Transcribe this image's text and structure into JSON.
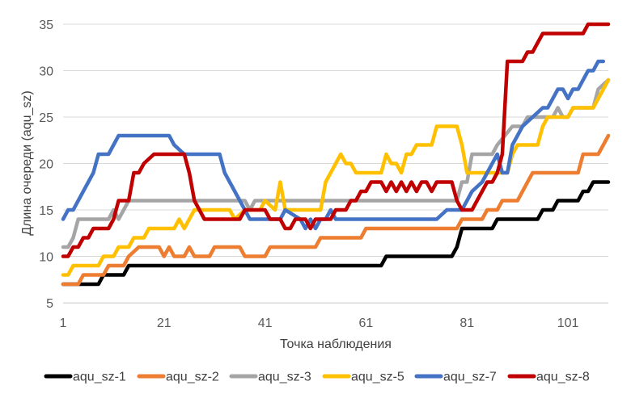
{
  "chart_data": {
    "type": "line",
    "title": "",
    "xlabel": "Точка наблюдения",
    "ylabel": "Длина очереди (aqu_sz)",
    "ylim": [
      5,
      35
    ],
    "xlim": [
      1,
      109
    ],
    "yticks": [
      "5",
      "10",
      "15",
      "20",
      "25",
      "30",
      "35"
    ],
    "xticks": [
      "1",
      "21",
      "41",
      "61",
      "81",
      "101"
    ],
    "grid": "horizontal",
    "legend": "bottom",
    "series": [
      {
        "name": "aqu_sz-1",
        "color": "#000000",
        "points": [
          [
            1,
            7
          ],
          [
            8,
            7
          ],
          [
            9,
            8
          ],
          [
            13,
            8
          ],
          [
            14,
            9
          ],
          [
            17,
            9
          ],
          [
            18,
            9
          ],
          [
            41,
            9
          ],
          [
            64,
            9
          ],
          [
            65,
            10
          ],
          [
            78,
            10
          ],
          [
            79,
            11
          ],
          [
            80,
            13
          ],
          [
            86,
            13
          ],
          [
            87,
            14
          ],
          [
            95,
            14
          ],
          [
            96,
            15
          ],
          [
            98,
            15
          ],
          [
            99,
            16
          ],
          [
            103,
            16
          ],
          [
            104,
            17
          ],
          [
            105,
            17
          ],
          [
            106,
            18
          ],
          [
            109,
            18
          ]
        ]
      },
      {
        "name": "aqu_sz-2",
        "color": "#ED7D31",
        "points": [
          [
            1,
            7
          ],
          [
            4,
            7
          ],
          [
            5,
            8
          ],
          [
            9,
            8
          ],
          [
            10,
            9
          ],
          [
            13,
            9
          ],
          [
            14,
            10
          ],
          [
            16,
            11
          ],
          [
            20,
            11
          ],
          [
            21,
            10
          ],
          [
            22,
            11
          ],
          [
            23,
            10
          ],
          [
            25,
            10
          ],
          [
            26,
            11
          ],
          [
            27,
            10
          ],
          [
            30,
            10
          ],
          [
            31,
            11
          ],
          [
            36,
            11
          ],
          [
            37,
            10
          ],
          [
            41,
            10
          ],
          [
            42,
            11
          ],
          [
            51,
            11
          ],
          [
            52,
            12
          ],
          [
            60,
            12
          ],
          [
            61,
            13
          ],
          [
            79,
            13
          ],
          [
            80,
            14
          ],
          [
            84,
            14
          ],
          [
            85,
            15
          ],
          [
            87,
            15
          ],
          [
            88,
            16
          ],
          [
            91,
            16
          ],
          [
            92,
            17
          ],
          [
            93,
            18
          ],
          [
            94,
            19
          ],
          [
            103,
            19
          ],
          [
            104,
            21
          ],
          [
            107,
            21
          ],
          [
            108,
            22
          ],
          [
            109,
            23
          ]
        ]
      },
      {
        "name": "aqu_sz-3",
        "color": "#A5A5A5",
        "points": [
          [
            1,
            11
          ],
          [
            2,
            11
          ],
          [
            3,
            12
          ],
          [
            4,
            14
          ],
          [
            10,
            14
          ],
          [
            11,
            15
          ],
          [
            12,
            14
          ],
          [
            13,
            15
          ],
          [
            14,
            16
          ],
          [
            37,
            16
          ],
          [
            38,
            15
          ],
          [
            39,
            16
          ],
          [
            79,
            16
          ],
          [
            80,
            18
          ],
          [
            81,
            18
          ],
          [
            82,
            21
          ],
          [
            86,
            21
          ],
          [
            87,
            22
          ],
          [
            90,
            24
          ],
          [
            92,
            24
          ],
          [
            93,
            25
          ],
          [
            98,
            25
          ],
          [
            99,
            26
          ],
          [
            100,
            25
          ],
          [
            101,
            25
          ],
          [
            102,
            26
          ],
          [
            106,
            26
          ],
          [
            107,
            28
          ],
          [
            109,
            29
          ]
        ]
      },
      {
        "name": "aqu_sz-5",
        "color": "#FFC000",
        "points": [
          [
            1,
            8
          ],
          [
            2,
            8
          ],
          [
            3,
            9
          ],
          [
            8,
            9
          ],
          [
            9,
            10
          ],
          [
            11,
            10
          ],
          [
            12,
            11
          ],
          [
            14,
            11
          ],
          [
            15,
            12
          ],
          [
            16,
            12
          ],
          [
            17,
            12
          ],
          [
            18,
            13
          ],
          [
            23,
            13
          ],
          [
            24,
            14
          ],
          [
            25,
            13
          ],
          [
            26,
            14
          ],
          [
            27,
            15
          ],
          [
            34,
            15
          ],
          [
            35,
            14
          ],
          [
            37,
            15
          ],
          [
            40,
            15
          ],
          [
            41,
            16
          ],
          [
            43,
            15
          ],
          [
            44,
            18
          ],
          [
            45,
            15
          ],
          [
            52,
            15
          ],
          [
            53,
            18
          ],
          [
            54,
            19
          ],
          [
            55,
            20
          ],
          [
            56,
            21
          ],
          [
            57,
            20
          ],
          [
            58,
            20
          ],
          [
            59,
            19
          ],
          [
            64,
            19
          ],
          [
            65,
            21
          ],
          [
            66,
            20
          ],
          [
            67,
            20
          ],
          [
            68,
            19
          ],
          [
            69,
            21
          ],
          [
            70,
            21
          ],
          [
            71,
            22
          ],
          [
            74,
            22
          ],
          [
            75,
            24
          ],
          [
            79,
            24
          ],
          [
            80,
            22
          ],
          [
            81,
            19
          ],
          [
            89,
            19
          ],
          [
            90,
            21
          ],
          [
            91,
            22
          ],
          [
            95,
            22
          ],
          [
            96,
            24
          ],
          [
            97,
            25
          ],
          [
            101,
            25
          ],
          [
            102,
            26
          ],
          [
            104,
            26
          ],
          [
            105,
            26
          ],
          [
            106,
            26
          ],
          [
            107,
            27
          ],
          [
            108,
            28
          ],
          [
            109,
            29
          ]
        ]
      },
      {
        "name": "aqu_sz-7",
        "color": "#4472C4",
        "points": [
          [
            1,
            14
          ],
          [
            2,
            15
          ],
          [
            3,
            15
          ],
          [
            4,
            16
          ],
          [
            7,
            19
          ],
          [
            8,
            21
          ],
          [
            10,
            21
          ],
          [
            11,
            22
          ],
          [
            12,
            23
          ],
          [
            22,
            23
          ],
          [
            23,
            22
          ],
          [
            25,
            21
          ],
          [
            32,
            21
          ],
          [
            33,
            19
          ],
          [
            37,
            15
          ],
          [
            38,
            14
          ],
          [
            44,
            14
          ],
          [
            45,
            15
          ],
          [
            48,
            14
          ],
          [
            49,
            13
          ],
          [
            50,
            14
          ],
          [
            51,
            13
          ],
          [
            52,
            14
          ],
          [
            53,
            14
          ],
          [
            54,
            15
          ],
          [
            55,
            14
          ],
          [
            65,
            14
          ],
          [
            75,
            14
          ],
          [
            77,
            15
          ],
          [
            80,
            15
          ],
          [
            81,
            16
          ],
          [
            82,
            17
          ],
          [
            84,
            18
          ],
          [
            85,
            19
          ],
          [
            86,
            20
          ],
          [
            87,
            21
          ],
          [
            88,
            19
          ],
          [
            89,
            19
          ],
          [
            90,
            22
          ],
          [
            92,
            24
          ],
          [
            94,
            25
          ],
          [
            96,
            26
          ],
          [
            97,
            26
          ],
          [
            98,
            27
          ],
          [
            99,
            28
          ],
          [
            100,
            28
          ],
          [
            101,
            27
          ],
          [
            102,
            28
          ],
          [
            103,
            28
          ],
          [
            104,
            29
          ],
          [
            105,
            30
          ],
          [
            106,
            30
          ],
          [
            107,
            31
          ],
          [
            108,
            31
          ]
        ]
      },
      {
        "name": "aqu_sz-8",
        "color": "#C00000",
        "points": [
          [
            1,
            10
          ],
          [
            2,
            10
          ],
          [
            3,
            11
          ],
          [
            4,
            11
          ],
          [
            5,
            12
          ],
          [
            6,
            12
          ],
          [
            7,
            13
          ],
          [
            10,
            13
          ],
          [
            11,
            14
          ],
          [
            12,
            16
          ],
          [
            14,
            16
          ],
          [
            15,
            19
          ],
          [
            16,
            19
          ],
          [
            17,
            20
          ],
          [
            19,
            21
          ],
          [
            25,
            21
          ],
          [
            26,
            19
          ],
          [
            27,
            16
          ],
          [
            29,
            14
          ],
          [
            36,
            14
          ],
          [
            37,
            15
          ],
          [
            39,
            15
          ],
          [
            41,
            15
          ],
          [
            42,
            14
          ],
          [
            44,
            14
          ],
          [
            45,
            13
          ],
          [
            46,
            13
          ],
          [
            47,
            14
          ],
          [
            49,
            14
          ],
          [
            50,
            13
          ],
          [
            51,
            14
          ],
          [
            53,
            14
          ],
          [
            54,
            14
          ],
          [
            55,
            15
          ],
          [
            57,
            15
          ],
          [
            58,
            16
          ],
          [
            59,
            16
          ],
          [
            60,
            17
          ],
          [
            61,
            17
          ],
          [
            62,
            18
          ],
          [
            64,
            18
          ],
          [
            65,
            17
          ],
          [
            66,
            18
          ],
          [
            67,
            17
          ],
          [
            68,
            18
          ],
          [
            69,
            17
          ],
          [
            70,
            18
          ],
          [
            71,
            17
          ],
          [
            72,
            18
          ],
          [
            73,
            18
          ],
          [
            74,
            17
          ],
          [
            75,
            18
          ],
          [
            77,
            18
          ],
          [
            78,
            18
          ],
          [
            79,
            16
          ],
          [
            80,
            15
          ],
          [
            82,
            15
          ],
          [
            83,
            16
          ],
          [
            84,
            17
          ],
          [
            85,
            18
          ],
          [
            86,
            18
          ],
          [
            87,
            19
          ],
          [
            88,
            21
          ],
          [
            89,
            31
          ],
          [
            92,
            31
          ],
          [
            93,
            32
          ],
          [
            94,
            32
          ],
          [
            95,
            33
          ],
          [
            96,
            34
          ],
          [
            104,
            34
          ],
          [
            105,
            35
          ],
          [
            109,
            35
          ]
        ]
      }
    ]
  }
}
